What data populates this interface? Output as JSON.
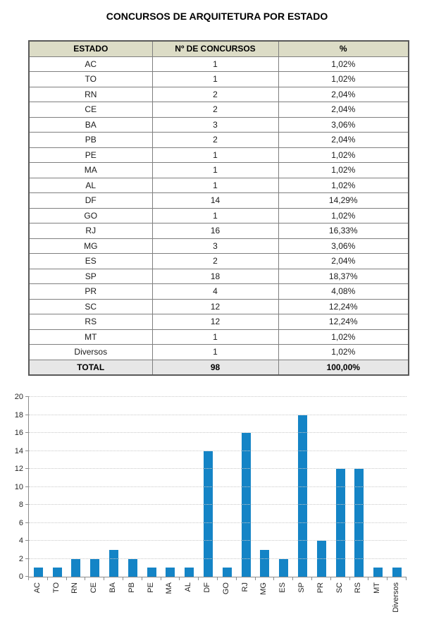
{
  "title": "CONCURSOS DE ARQUITETURA POR ESTADO",
  "table": {
    "headers": [
      "ESTADO",
      "Nº DE CONCURSOS",
      "%"
    ],
    "rows": [
      [
        "AC",
        "1",
        "1,02%"
      ],
      [
        "TO",
        "1",
        "1,02%"
      ],
      [
        "RN",
        "2",
        "2,04%"
      ],
      [
        "CE",
        "2",
        "2,04%"
      ],
      [
        "BA",
        "3",
        "3,06%"
      ],
      [
        "PB",
        "2",
        "2,04%"
      ],
      [
        "PE",
        "1",
        "1,02%"
      ],
      [
        "MA",
        "1",
        "1,02%"
      ],
      [
        "AL",
        "1",
        "1,02%"
      ],
      [
        "DF",
        "14",
        "14,29%"
      ],
      [
        "GO",
        "1",
        "1,02%"
      ],
      [
        "RJ",
        "16",
        "16,33%"
      ],
      [
        "MG",
        "3",
        "3,06%"
      ],
      [
        "ES",
        "2",
        "2,04%"
      ],
      [
        "SP",
        "18",
        "18,37%"
      ],
      [
        "PR",
        "4",
        "4,08%"
      ],
      [
        "SC",
        "12",
        "12,24%"
      ],
      [
        "RS",
        "12",
        "12,24%"
      ],
      [
        "MT",
        "1",
        "1,02%"
      ],
      [
        "Diversos",
        "1",
        "1,02%"
      ]
    ],
    "total": [
      "TOTAL",
      "98",
      "100,00%"
    ]
  },
  "chart_data": {
    "type": "bar",
    "title": "",
    "xlabel": "",
    "ylabel": "",
    "categories": [
      "AC",
      "TO",
      "RN",
      "CE",
      "BA",
      "PB",
      "PE",
      "MA",
      "AL",
      "DF",
      "GO",
      "RJ",
      "MG",
      "ES",
      "SP",
      "PR",
      "SC",
      "RS",
      "MT",
      "Diversos"
    ],
    "values": [
      1,
      1,
      2,
      2,
      3,
      2,
      1,
      1,
      1,
      14,
      1,
      16,
      3,
      2,
      18,
      4,
      12,
      12,
      1,
      1
    ],
    "ylim": [
      0,
      20
    ],
    "yticks": [
      0,
      2,
      4,
      6,
      8,
      10,
      12,
      14,
      16,
      18,
      20
    ],
    "grid": "horizontal-dotted",
    "legend": "none",
    "bar_color": "#1484c6"
  },
  "colors": {
    "header_bg": "#dcdcc6",
    "total_bg": "#e7e7e7",
    "bar": "#1484c6",
    "gridline": "#c9c9c9",
    "axis": "#8c8c8c"
  }
}
